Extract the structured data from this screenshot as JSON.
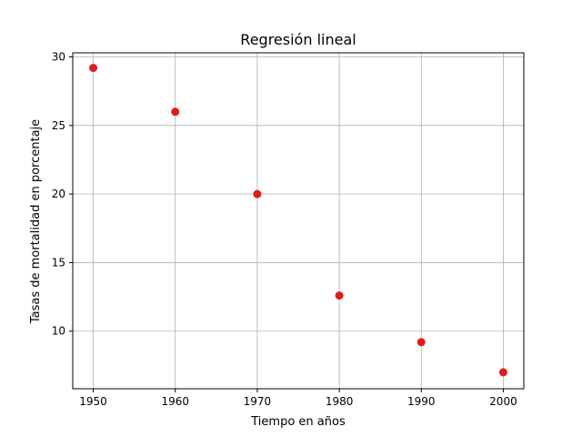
{
  "chart_data": {
    "type": "scatter",
    "title": "Regresión lineal",
    "xlabel": "Tiempo en años",
    "ylabel": "Tasas de mortalidad en porcentaje",
    "x": [
      1950,
      1960,
      1970,
      1980,
      1990,
      2000
    ],
    "y": [
      29.2,
      26.0,
      20.0,
      12.6,
      9.2,
      7.0
    ],
    "xlim": [
      1947.5,
      2002.5
    ],
    "ylim": [
      5.8,
      30.3
    ],
    "xticks": [
      1950,
      1960,
      1970,
      1980,
      1990,
      2000
    ],
    "xtick_labels": [
      "1950",
      "1960",
      "1970",
      "1980",
      "1990",
      "2000"
    ],
    "yticks": [
      10,
      15,
      20,
      25,
      30
    ],
    "ytick_labels": [
      "10",
      "15",
      "20",
      "25",
      "30"
    ],
    "grid": true,
    "marker_color": "#e41a1c",
    "grid_color": "#b0b0b0"
  }
}
